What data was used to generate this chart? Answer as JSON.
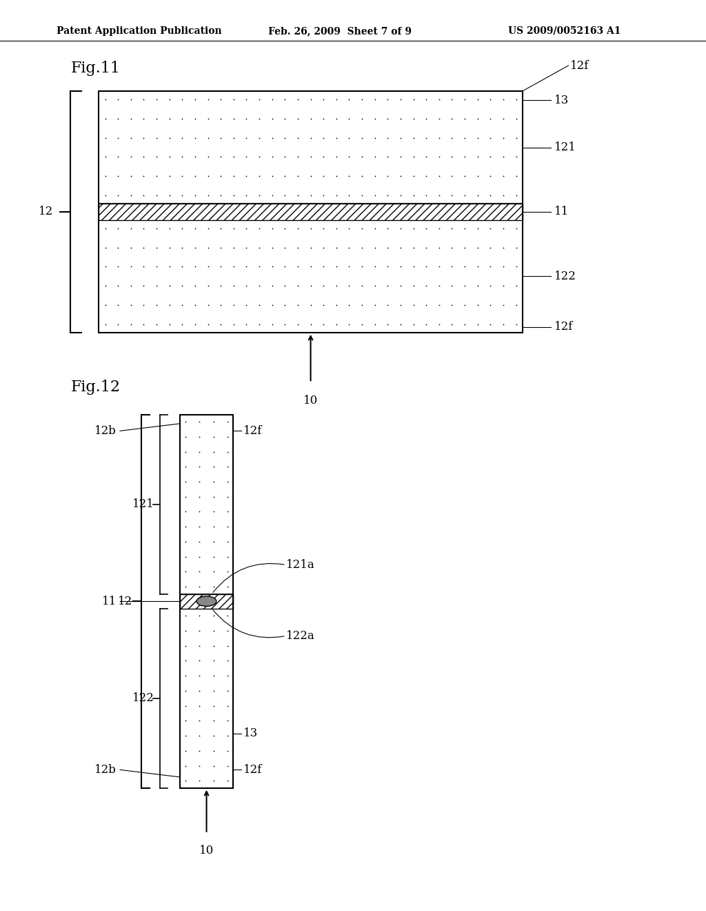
{
  "bg_color": "#ffffff",
  "header_left": "Patent Application Publication",
  "header_mid": "Feb. 26, 2009  Sheet 7 of 9",
  "header_right": "US 2009/0052163 A1",
  "fig11_label": "Fig.11",
  "fig12_label": "Fig.12"
}
